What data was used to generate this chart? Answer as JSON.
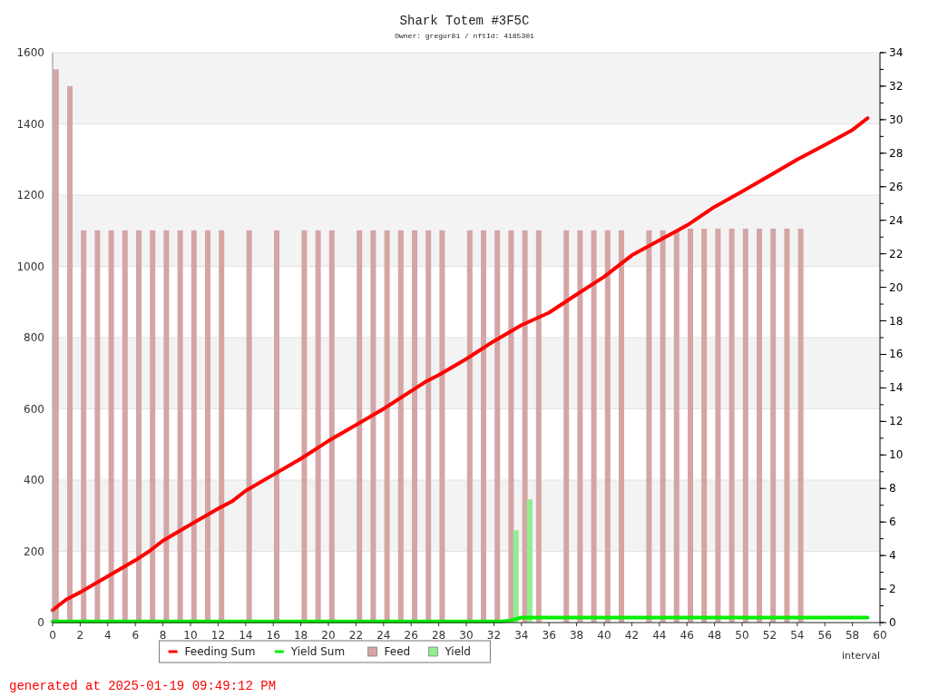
{
  "chart_data": {
    "type": "bar",
    "title": "Shark Totem #3F5C",
    "subtitle": "Owner: gregur81 / nftId: 4185301",
    "xlabel": "interval",
    "annotations": [
      "generated at 2025-01-19 09:49:12 PM"
    ],
    "xlim": [
      0,
      60
    ],
    "xticks": [
      0,
      2,
      4,
      6,
      8,
      10,
      12,
      14,
      16,
      18,
      20,
      22,
      24,
      26,
      28,
      30,
      32,
      34,
      36,
      38,
      40,
      42,
      44,
      46,
      48,
      50,
      52,
      54,
      56,
      58,
      60
    ],
    "ylim": [
      0,
      1600
    ],
    "yticks": [
      0,
      200,
      400,
      600,
      800,
      1000,
      1200,
      1400,
      1600
    ],
    "y2lim": [
      0,
      34
    ],
    "y2ticks": [
      0,
      2,
      4,
      6,
      8,
      10,
      12,
      14,
      16,
      18,
      20,
      22,
      24,
      26,
      28,
      30,
      32,
      34
    ],
    "grid": "y",
    "legend": "bottom",
    "series": [
      {
        "name": "Feed",
        "axis": "y2",
        "color": "#d4a5a5",
        "x": [
          0.25,
          1.25,
          2.25,
          3.25,
          4.25,
          5.25,
          6.25,
          7.25,
          8.25,
          9.25,
          10.25,
          11.25,
          12.25,
          14.25,
          16.25,
          18.25,
          19.25,
          20.25,
          22.25,
          23.25,
          24.25,
          25.25,
          26.25,
          27.25,
          28.25,
          30.25,
          31.25,
          32.25,
          33.25,
          34.25,
          35.25,
          37.25,
          38.25,
          39.25,
          40.25,
          41.25,
          43.25,
          44.25,
          45.25,
          46.25,
          47.25,
          48.25,
          49.25,
          50.25,
          51.25,
          52.25,
          53.25,
          54.25
        ],
        "values": [
          33.0,
          32.0,
          23.4,
          23.4,
          23.4,
          23.4,
          23.4,
          23.4,
          23.4,
          23.4,
          23.4,
          23.4,
          23.4,
          23.4,
          23.4,
          23.4,
          23.4,
          23.4,
          23.4,
          23.4,
          23.4,
          23.4,
          23.4,
          23.4,
          23.4,
          23.4,
          23.4,
          23.4,
          23.4,
          23.4,
          23.4,
          23.4,
          23.4,
          23.4,
          23.4,
          23.4,
          23.4,
          23.4,
          23.4,
          23.5,
          23.5,
          23.5,
          23.5,
          23.5,
          23.5,
          23.5,
          23.5,
          23.5
        ]
      },
      {
        "name": "Yield",
        "axis": "y2",
        "color": "#90ee90",
        "x": [
          33.6,
          34.6
        ],
        "values": [
          5.5,
          7.35
        ]
      },
      {
        "name": "Feeding Sum",
        "type": "line",
        "color": "#ff0000",
        "x": [
          0,
          1,
          2,
          4,
          6,
          7,
          8,
          10,
          12,
          13,
          14,
          16,
          18,
          20,
          22,
          24,
          26,
          27,
          28,
          30,
          32,
          34,
          36,
          38,
          40,
          42,
          44,
          46,
          48,
          50,
          52,
          54,
          56,
          58,
          59.1
        ],
        "values": [
          35,
          65,
          85,
          130,
          175,
          200,
          230,
          275,
          320,
          340,
          370,
          415,
          460,
          510,
          555,
          600,
          650,
          675,
          695,
          740,
          790,
          835,
          870,
          921,
          971,
          1031,
          1073,
          1115,
          1167,
          1210,
          1255,
          1300,
          1341,
          1383,
          1416
        ]
      },
      {
        "name": "Yield Sum",
        "type": "line",
        "color": "#00ee00",
        "x": [
          0,
          32.5,
          33.2,
          33.6,
          34,
          59.1
        ],
        "values": [
          3,
          3,
          6,
          10,
          14,
          14
        ]
      }
    ]
  }
}
